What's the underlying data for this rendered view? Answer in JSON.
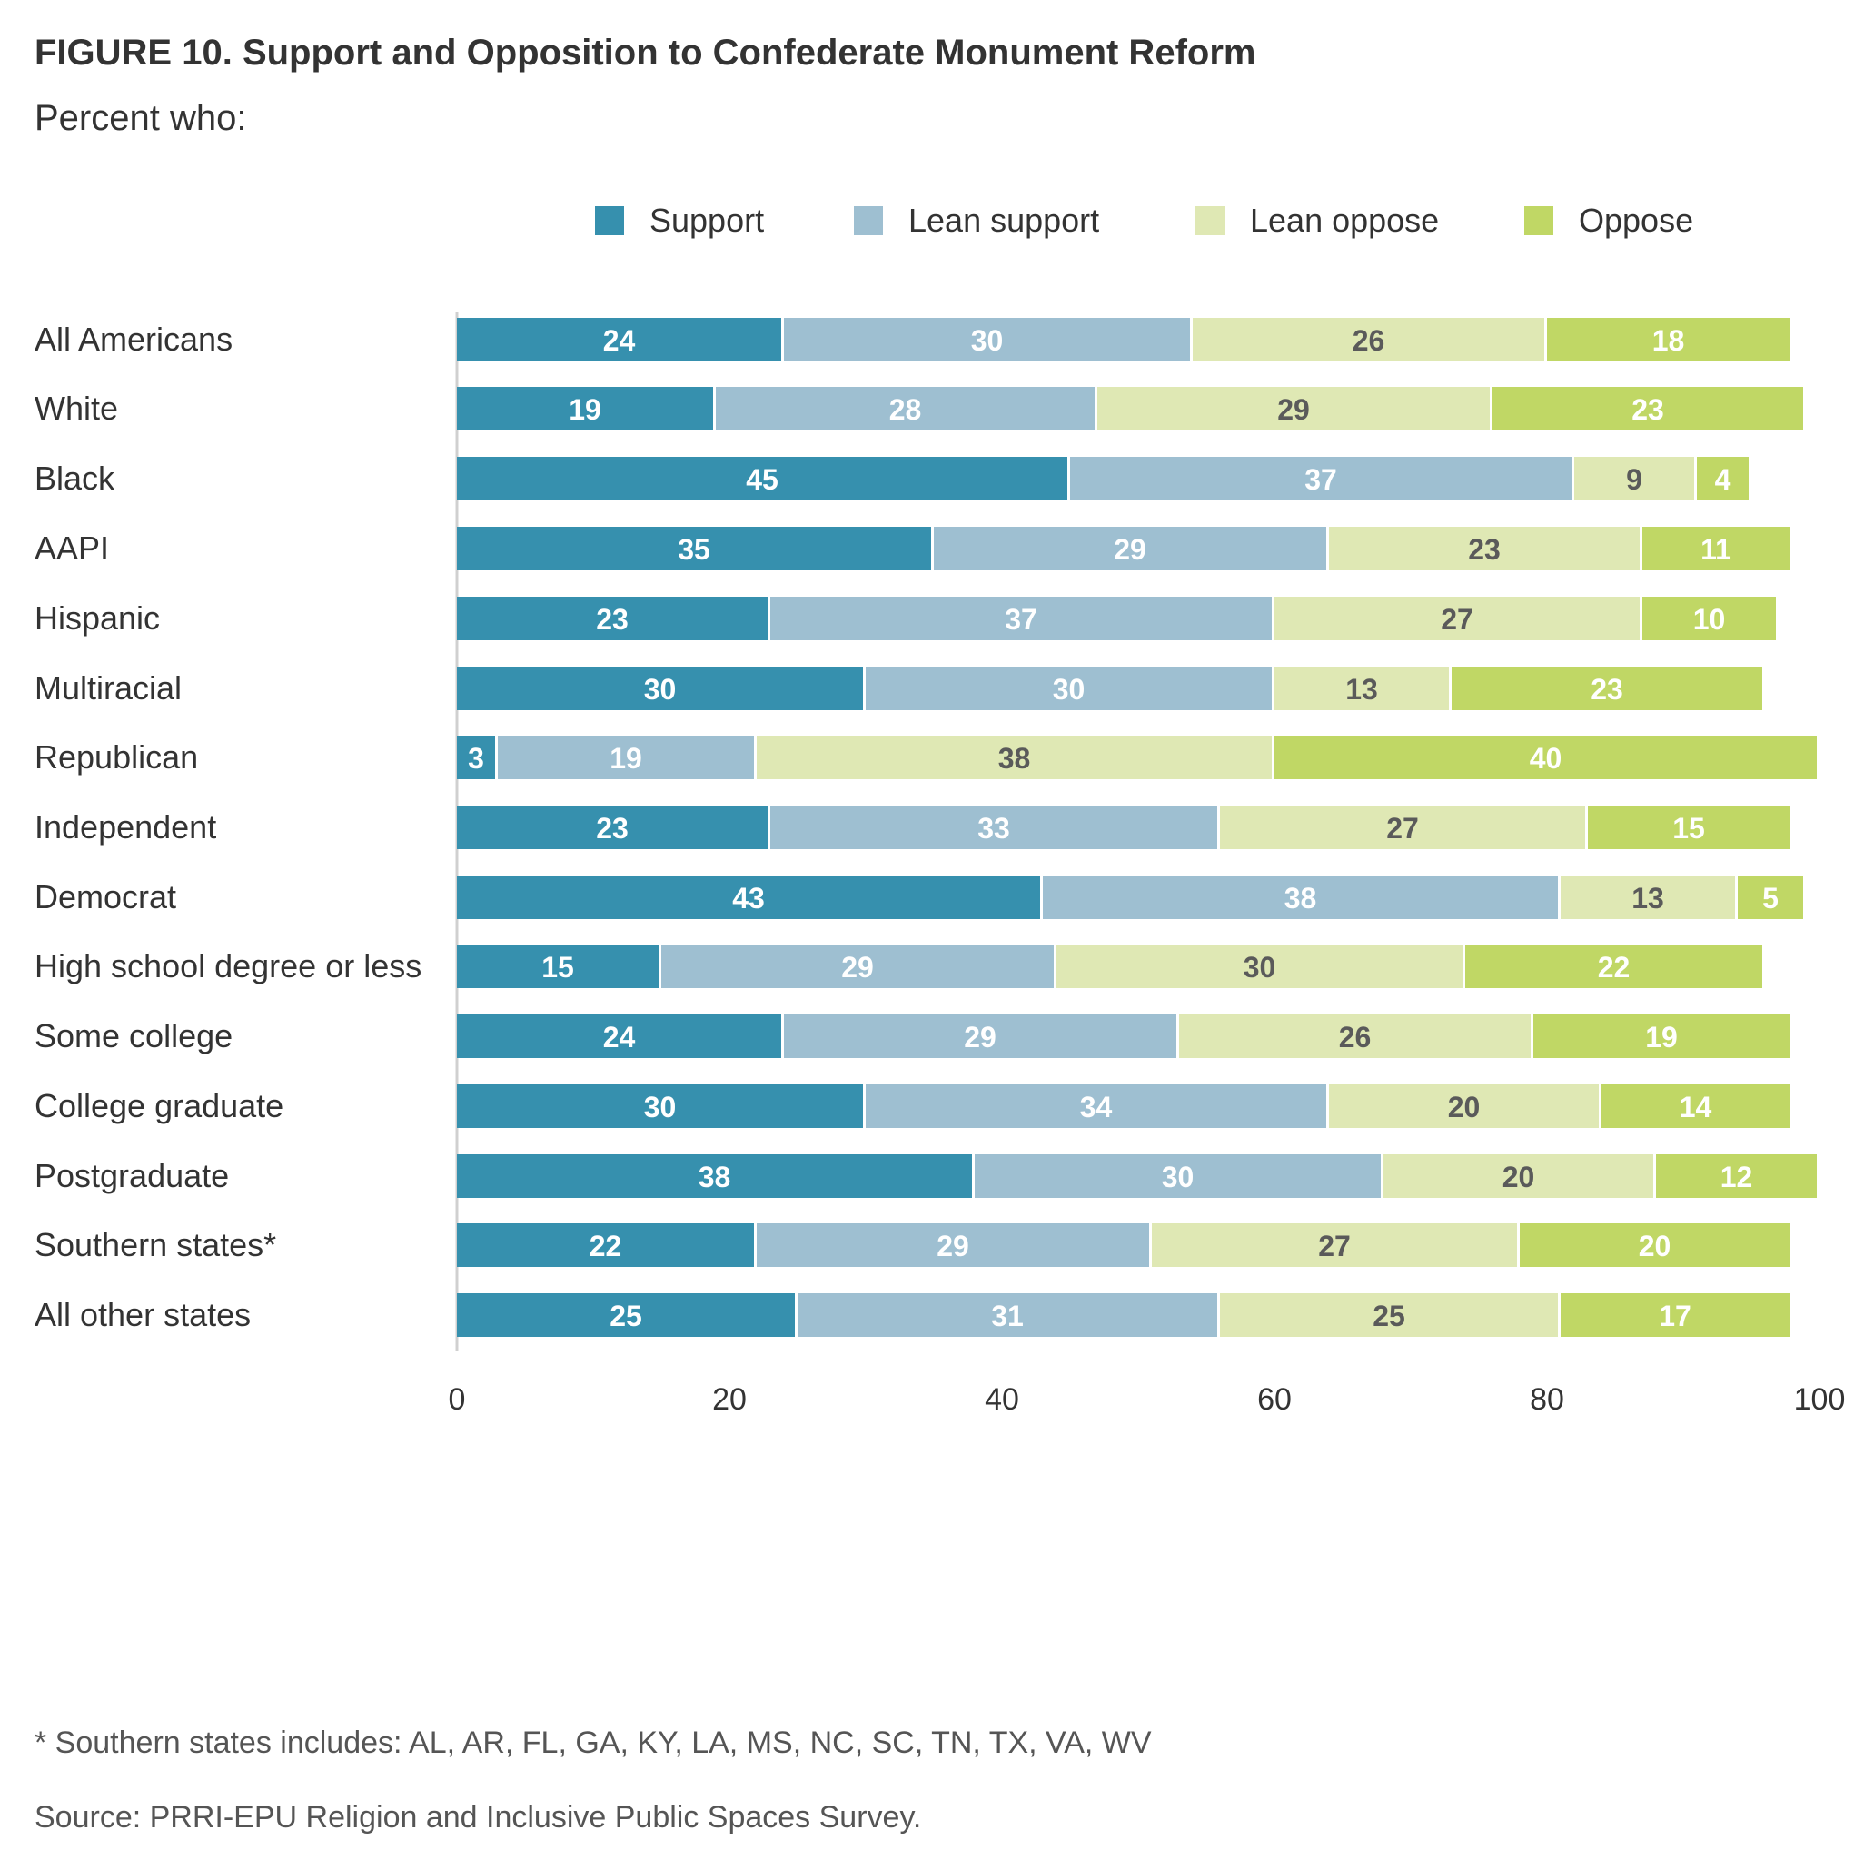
{
  "chart_data": {
    "type": "bar",
    "orientation": "horizontal",
    "stacked": true,
    "title": "FIGURE 10.  Support and Opposition to Confederate Monument Reform",
    "subtitle": "Percent who:",
    "xlabel": "",
    "ylabel": "",
    "xlim": [
      0,
      100
    ],
    "x_ticks": [
      0,
      20,
      40,
      60,
      80,
      100
    ],
    "grid": false,
    "legend_position": "top",
    "categories": [
      "All Americans",
      "White",
      "Black",
      "AAPI",
      "Hispanic",
      "Multiracial",
      "Republican",
      "Independent",
      "Democrat",
      "High school degree or less",
      "Some college",
      "College graduate",
      "Postgraduate",
      "Southern states*",
      "All other states"
    ],
    "groups": [
      [
        "All Americans"
      ],
      [
        "White",
        "Black",
        "AAPI",
        "Hispanic",
        "Multiracial"
      ],
      [
        "Republican",
        "Independent",
        "Democrat"
      ],
      [
        "High school degree or less",
        "Some college",
        "College graduate",
        "Postgraduate"
      ],
      [
        "Southern states*",
        "All other states"
      ]
    ],
    "series": [
      {
        "name": "Support",
        "color": "#3690AE",
        "label_color": "#ffffff",
        "values": [
          24,
          19,
          45,
          35,
          23,
          30,
          3,
          23,
          43,
          15,
          24,
          30,
          38,
          22,
          25
        ]
      },
      {
        "name": "Lean support",
        "color": "#9EBFD1",
        "label_color": "#ffffff",
        "values": [
          30,
          28,
          37,
          29,
          37,
          30,
          19,
          33,
          38,
          29,
          29,
          34,
          30,
          29,
          31
        ]
      },
      {
        "name": "Lean oppose",
        "color": "#DFE8B4",
        "label_color": "#5a5a5a",
        "values": [
          26,
          29,
          9,
          23,
          27,
          13,
          38,
          27,
          13,
          30,
          26,
          20,
          20,
          27,
          25
        ]
      },
      {
        "name": "Oppose",
        "color": "#C0D765",
        "label_color": "#ffffff",
        "values": [
          18,
          23,
          4,
          11,
          10,
          23,
          40,
          15,
          5,
          22,
          19,
          14,
          12,
          20,
          17
        ]
      }
    ],
    "footnote": "* Southern states includes: AL, AR, FL, GA, KY, LA, MS, NC, SC, TN, TX, VA, WV",
    "source": "Source: PRRI-EPU Religion and Inclusive Public Spaces Survey."
  }
}
